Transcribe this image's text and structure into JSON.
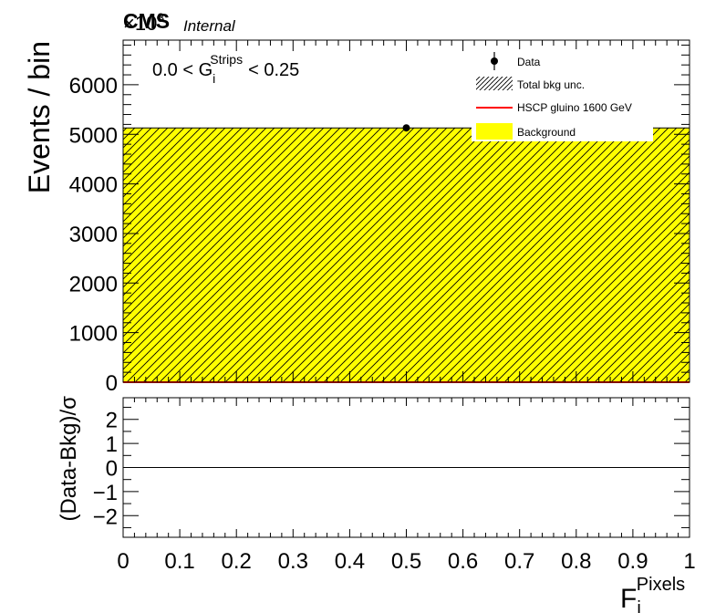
{
  "header": {
    "experiment": "CMS",
    "status": "Internal",
    "exponent": "×10",
    "exponent_power": "3"
  },
  "selection": {
    "left": "0.0 < G",
    "sub": "i",
    "sup": "Strips",
    "right": "< 0.25"
  },
  "colors": {
    "background_fill": "#ffff00",
    "hatch": "#000000",
    "signal": "#ff0000",
    "data": "#000000"
  },
  "legend": {
    "data": "Data",
    "unc": "Total bkg unc.",
    "signal": "HSCP gluino 1600 GeV",
    "background": "Background"
  },
  "chart_data": [
    {
      "type": "bar",
      "panel": "main",
      "ylabel": "Events / bin",
      "xlim": [
        0,
        1
      ],
      "ylim": [
        0,
        6900
      ],
      "yticks": [
        "0",
        "1000",
        "2000",
        "3000",
        "4000",
        "5000",
        "6000"
      ],
      "background": {
        "x": [
          0,
          1
        ],
        "values": [
          5130
        ]
      },
      "data_points": [
        {
          "x": 0.5,
          "y": 5130
        }
      ],
      "signal": {
        "values": [
          0
        ]
      }
    },
    {
      "type": "line",
      "panel": "ratio",
      "ylabel": "(Data-Bkg)/σ",
      "xlabel": "F",
      "xlabel_sub": "i",
      "xlabel_sup": "Pixels",
      "xlim": [
        0,
        1
      ],
      "ylim": [
        -2.9,
        2.9
      ],
      "yticks": [
        "−2",
        "−1",
        "0",
        "1",
        "2"
      ],
      "xticks": [
        "0",
        "0.1",
        "0.2",
        "0.3",
        "0.4",
        "0.5",
        "0.6",
        "0.7",
        "0.8",
        "0.9",
        "1"
      ],
      "reference_y": 0
    }
  ]
}
